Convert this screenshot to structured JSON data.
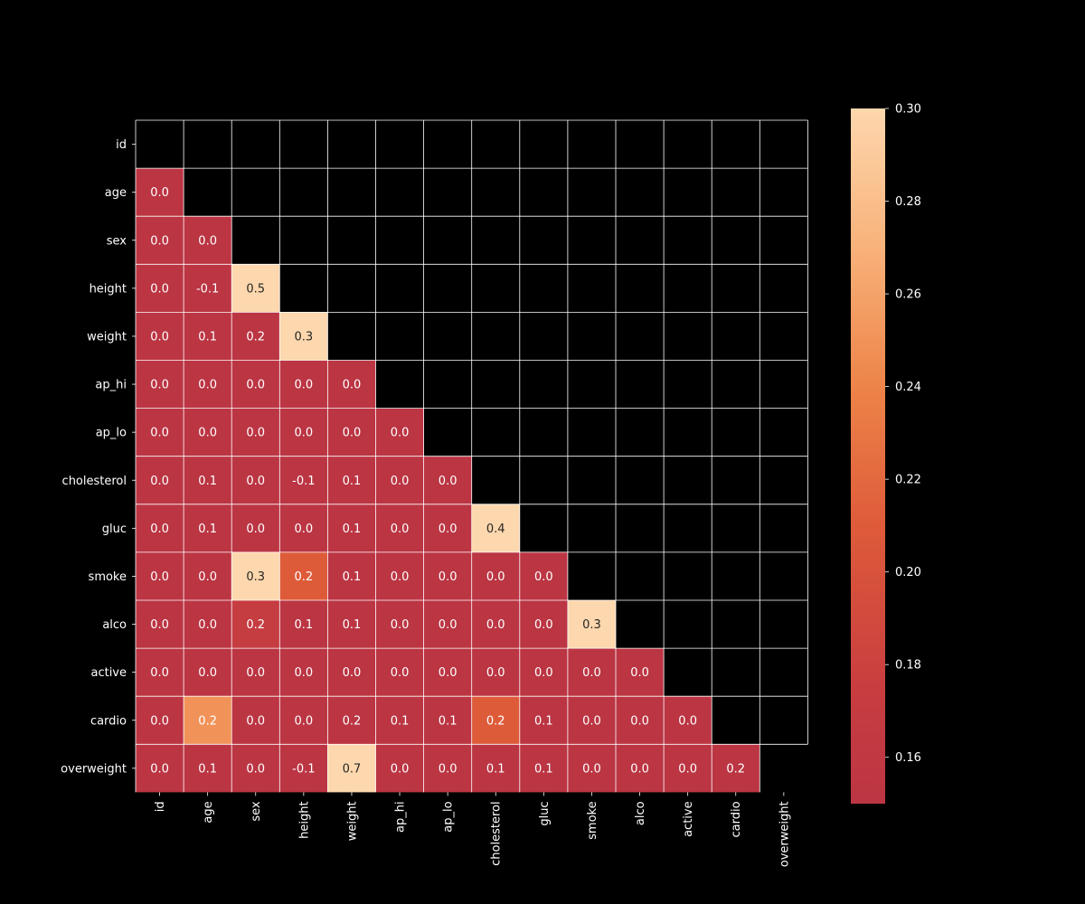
{
  "colors": {
    "background": "#000000",
    "grid_line": "#ffffff",
    "text_on_dark": "#ffffff",
    "text_on_light": "#262626",
    "colormap_low": "#bb3543",
    "colormap_mid": "#e3673b",
    "colormap_high": "#fdd7ad"
  },
  "chart_data": {
    "type": "heatmap",
    "mask": "upper-triangle-including-diagonal",
    "x_labels": [
      "id",
      "age",
      "sex",
      "height",
      "weight",
      "ap_hi",
      "ap_lo",
      "cholesterol",
      "gluc",
      "smoke",
      "alco",
      "active",
      "cardio",
      "overweight"
    ],
    "y_labels": [
      "id",
      "age",
      "sex",
      "height",
      "weight",
      "ap_hi",
      "ap_lo",
      "cholesterol",
      "gluc",
      "smoke",
      "alco",
      "active",
      "cardio",
      "overweight"
    ],
    "rows": [
      {
        "label": "age",
        "values": [
          0.0
        ]
      },
      {
        "label": "sex",
        "values": [
          0.0,
          -0.0
        ]
      },
      {
        "label": "height",
        "values": [
          -0.0,
          -0.1,
          0.5
        ]
      },
      {
        "label": "weight",
        "values": [
          -0.0,
          0.1,
          0.2,
          0.3
        ]
      },
      {
        "label": "ap_hi",
        "values": [
          0.0,
          0.0,
          0.0,
          0.0,
          0.0
        ]
      },
      {
        "label": "ap_lo",
        "values": [
          -0.0,
          0.0,
          0.0,
          0.0,
          0.0,
          0.0
        ]
      },
      {
        "label": "cholesterol",
        "values": [
          0.0,
          0.1,
          -0.0,
          -0.1,
          0.1,
          0.0,
          0.0
        ]
      },
      {
        "label": "gluc",
        "values": [
          0.0,
          0.1,
          -0.0,
          -0.0,
          0.1,
          0.0,
          0.0,
          0.4
        ]
      },
      {
        "label": "smoke",
        "values": [
          -0.0,
          -0.0,
          0.3,
          0.2,
          0.1,
          -0.0,
          0.0,
          0.0,
          -0.0
        ]
      },
      {
        "label": "alco",
        "values": [
          0.0,
          -0.0,
          0.2,
          0.1,
          0.1,
          0.0,
          0.0,
          0.0,
          0.0,
          0.3
        ]
      },
      {
        "label": "active",
        "values": [
          0.0,
          -0.0,
          0.0,
          -0.0,
          -0.0,
          0.0,
          0.0,
          0.0,
          -0.0,
          0.0,
          0.0
        ]
      },
      {
        "label": "cardio",
        "values": [
          0.0,
          0.2,
          0.0,
          -0.0,
          0.2,
          0.1,
          0.1,
          0.2,
          0.1,
          -0.0,
          -0.0,
          -0.0
        ]
      },
      {
        "label": "overweight",
        "values": [
          -0.0,
          0.1,
          -0.0,
          -0.1,
          0.7,
          0.0,
          0.0,
          0.1,
          0.1,
          -0.0,
          0.0,
          -0.0,
          0.2
        ]
      }
    ],
    "color_values": [
      [
        0.0
      ],
      [
        0.0,
        0.0
      ],
      [
        0.0,
        0.0,
        0.5
      ],
      [
        0.0,
        0.0,
        0.15,
        0.3
      ],
      [
        0.0,
        0.0,
        0.0,
        0.0,
        0.0
      ],
      [
        0.0,
        0.0,
        0.0,
        0.0,
        0.0,
        0.0
      ],
      [
        0.0,
        0.0,
        0.0,
        0.0,
        0.0,
        0.0,
        0.0
      ],
      [
        0.0,
        0.0,
        0.0,
        0.0,
        0.0,
        0.0,
        0.0,
        0.4
      ],
      [
        0.0,
        0.0,
        0.3,
        0.21,
        0.0,
        0.0,
        0.0,
        0.0,
        0.0
      ],
      [
        0.0,
        0.0,
        0.17,
        0.0,
        0.0,
        0.0,
        0.0,
        0.0,
        0.0,
        0.3
      ],
      [
        0.0,
        0.0,
        0.0,
        0.0,
        0.0,
        0.0,
        0.0,
        0.0,
        0.0,
        0.0,
        0.0
      ],
      [
        0.0,
        0.25,
        0.0,
        0.0,
        0.0,
        0.0,
        0.0,
        0.21,
        0.0,
        0.0,
        0.0,
        0.0
      ],
      [
        0.0,
        0.0,
        0.0,
        0.0,
        0.7,
        0.0,
        0.0,
        0.0,
        0.0,
        0.0,
        0.0,
        0.0,
        0.15
      ]
    ],
    "colorbar": {
      "vmin": 0.15,
      "vmax": 0.3,
      "ticks": [
        0.16,
        0.18,
        0.2,
        0.22,
        0.24,
        0.26,
        0.28,
        0.3
      ],
      "tick_labels": [
        "0.16",
        "0.18",
        "0.20",
        "0.22",
        "0.24",
        "0.26",
        "0.28",
        "0.30"
      ]
    },
    "cell_text_format": "one decimal",
    "grid": true,
    "legend": "colorbar-right"
  }
}
